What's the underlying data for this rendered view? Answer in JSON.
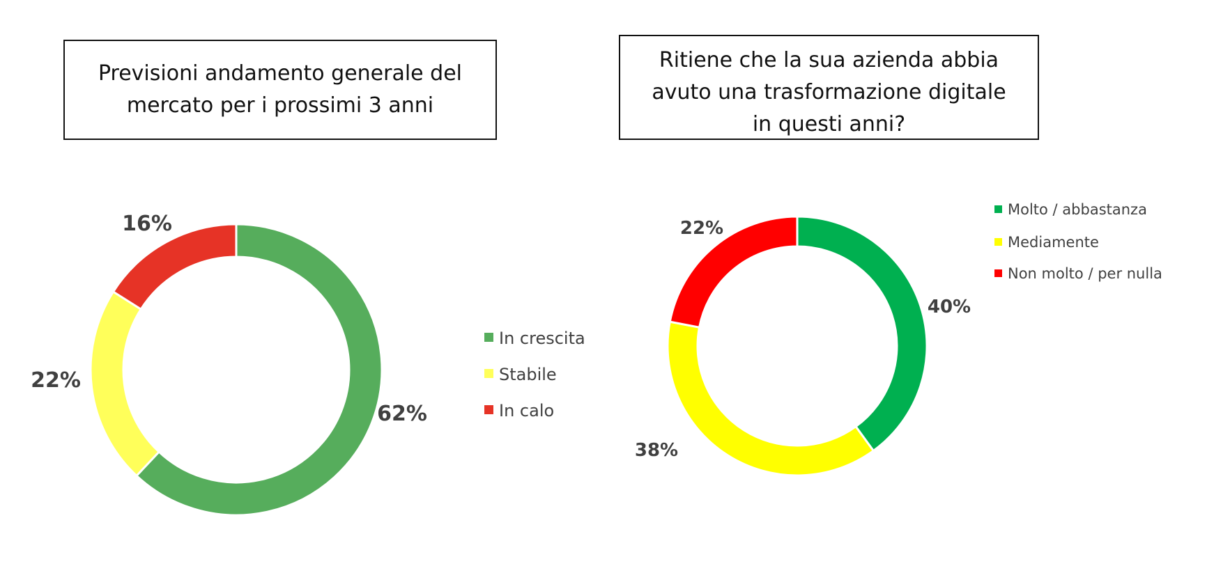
{
  "chart_data": [
    {
      "type": "pie",
      "donut": true,
      "title": "Previsioni andamento generale del mercato per i prossimi 3 anni",
      "categories": [
        "In crescita",
        "Stabile",
        "In calo"
      ],
      "values": [
        62,
        22,
        16
      ],
      "data_labels": [
        "62%",
        "22%",
        "16%"
      ],
      "colors": [
        "#56AD5C",
        "#FFFF5A",
        "#E63326"
      ],
      "legend": "right"
    },
    {
      "type": "pie",
      "donut": true,
      "title": "Ritiene che la sua azienda abbia avuto una trasformazione digitale in questi anni?",
      "categories": [
        "Molto / abbastanza",
        "Mediamente",
        "Non molto / per nulla"
      ],
      "values": [
        40,
        38,
        22
      ],
      "data_labels": [
        "40%",
        "38%",
        "22%"
      ],
      "colors": [
        "#00B050",
        "#FFFF00",
        "#FF0000"
      ],
      "legend": "top-right"
    }
  ]
}
